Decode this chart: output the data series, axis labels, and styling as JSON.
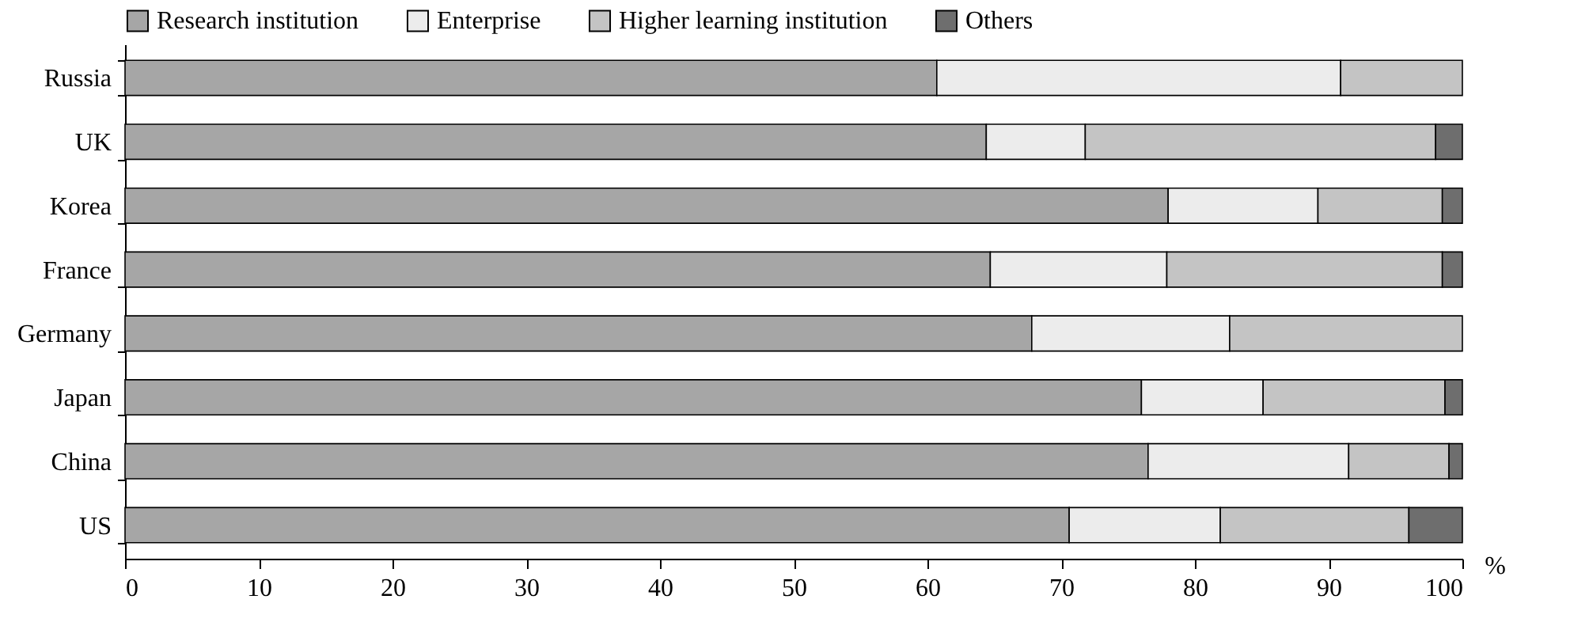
{
  "chart_data": {
    "type": "bar",
    "orientation": "horizontal",
    "stacked": true,
    "xlabel": "%",
    "categories": [
      "Russia",
      "UK",
      "Korea",
      "France",
      "Germany",
      "Japan",
      "China",
      "US"
    ],
    "series": [
      {
        "name": "Research institution",
        "color": "#a6a6a6",
        "values": [
          60.7,
          64.4,
          78,
          64.7,
          67.8,
          76,
          76.5,
          70.6
        ]
      },
      {
        "name": "Enterprise",
        "color": "#ececec",
        "values": [
          30.2,
          7.4,
          11.2,
          13.2,
          14.8,
          9.1,
          15,
          11.3
        ]
      },
      {
        "name": "Higher learning institution",
        "color": "#c4c4c4",
        "values": [
          9.1,
          26.2,
          9.3,
          20.6,
          17.4,
          13.6,
          7.5,
          14.1
        ]
      },
      {
        "name": "Others",
        "color": "#6e6e6e",
        "values": [
          null,
          2,
          1.5,
          1.5,
          null,
          1.3,
          1,
          4
        ]
      }
    ],
    "xlim": [
      0,
      100
    ],
    "xticks": [
      0,
      10,
      20,
      30,
      40,
      50,
      60,
      70,
      80,
      90,
      100
    ],
    "grid": false,
    "legend": "top"
  }
}
